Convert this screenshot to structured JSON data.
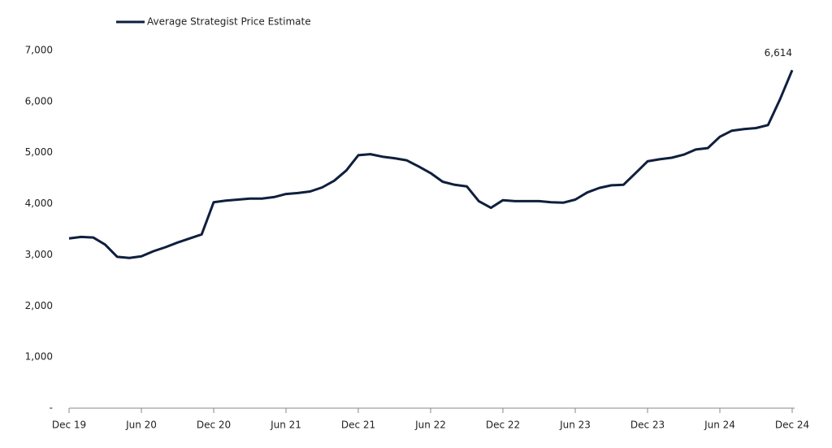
{
  "chart_data": {
    "type": "line",
    "categories": [
      "Dec 19",
      null,
      null,
      null,
      null,
      null,
      "Jun 20",
      null,
      null,
      null,
      null,
      null,
      "Dec 20",
      null,
      null,
      null,
      null,
      null,
      "Jun 21",
      null,
      null,
      null,
      null,
      null,
      "Dec 21",
      null,
      null,
      null,
      null,
      null,
      "Jun 22",
      null,
      null,
      null,
      null,
      null,
      "Dec 22",
      null,
      null,
      null,
      null,
      null,
      "Jun 23",
      null,
      null,
      null,
      null,
      null,
      "Dec 23",
      null,
      null,
      null,
      null,
      null,
      "Jun 24",
      null,
      null,
      null,
      null,
      null,
      "Dec 24"
    ],
    "series": [
      {
        "name": "Average Strategist Price Estimate",
        "color": "#0f1f3d",
        "values": [
          3320,
          3350,
          3340,
          3200,
          2960,
          2940,
          2970,
          3070,
          3150,
          3240,
          3320,
          3400,
          4030,
          4060,
          4080,
          4100,
          4100,
          4130,
          4190,
          4210,
          4240,
          4320,
          4450,
          4650,
          4950,
          4970,
          4920,
          4890,
          4850,
          4730,
          4600,
          4430,
          4370,
          4340,
          4050,
          3920,
          4070,
          4050,
          4050,
          4050,
          4030,
          4020,
          4080,
          4220,
          4310,
          4360,
          4370,
          4600,
          4830,
          4870,
          4900,
          4960,
          5060,
          5090,
          5310,
          5430,
          5460,
          5480,
          5540,
          6050,
          6614
        ],
        "value_labels": [
          null,
          null,
          null,
          null,
          null,
          null,
          null,
          null,
          null,
          null,
          null,
          null,
          null,
          null,
          null,
          null,
          null,
          null,
          null,
          null,
          null,
          null,
          null,
          null,
          null,
          null,
          null,
          null,
          null,
          null,
          null,
          null,
          null,
          null,
          null,
          null,
          null,
          null,
          null,
          null,
          null,
          null,
          null,
          null,
          null,
          null,
          null,
          null,
          null,
          null,
          null,
          null,
          null,
          null,
          null,
          null,
          null,
          null,
          null,
          null,
          "6,614"
        ]
      }
    ],
    "ylim": [
      0,
      7000
    ],
    "yticks": [
      {
        "value": 0,
        "label": "-"
      },
      {
        "value": 1000,
        "label": "1,000"
      },
      {
        "value": 2000,
        "label": "2,000"
      },
      {
        "value": 3000,
        "label": "3,000"
      },
      {
        "value": 4000,
        "label": "4,000"
      },
      {
        "value": 5000,
        "label": "5,000"
      },
      {
        "value": 6000,
        "label": "6,000"
      },
      {
        "value": 7000,
        "label": "7,000"
      }
    ],
    "grid": false,
    "legend": "top-left"
  }
}
